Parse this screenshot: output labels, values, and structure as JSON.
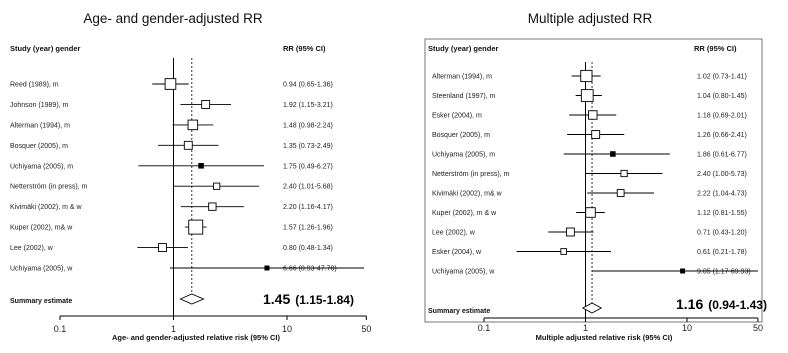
{
  "chart_data": [
    {
      "type": "forest",
      "title": "Age- and gender-adjusted RR",
      "column_headers": {
        "study": "Study (year) gender",
        "estimate": "RR (95% CI)"
      },
      "xlabel": "Age- and gender-adjusted relative risk (95% CI)",
      "x_scale": "log",
      "xlim": [
        0.1,
        50
      ],
      "x_ticks": [
        0.1,
        1,
        10,
        50
      ],
      "x_tick_labels": [
        "0.1",
        "1",
        "10",
        "50"
      ],
      "studies": [
        {
          "label": "Reed (1989), m",
          "rr": 0.94,
          "lo": 0.65,
          "hi": 1.36,
          "ci_text": "0.94 (0.65-1.36)",
          "weight": 0.7
        },
        {
          "label": "Johnson (1989), m",
          "rr": 1.92,
          "lo": 1.15,
          "hi": 3.21,
          "ci_text": "1.92 (1.15-3.21)",
          "weight": 0.45
        },
        {
          "label": "Alterman (1994), m",
          "rr": 1.48,
          "lo": 0.98,
          "hi": 2.24,
          "ci_text": "1.48 (0.98-2.24)",
          "weight": 0.6
        },
        {
          "label": "Bosquer (2005), m",
          "rr": 1.35,
          "lo": 0.73,
          "hi": 2.49,
          "ci_text": "1.35 (0.73-2.49)",
          "weight": 0.45
        },
        {
          "label": "Uchiyama (2005), m",
          "rr": 1.75,
          "lo": 0.49,
          "hi": 6.27,
          "ci_text": "1.75 (0.49-6.27)",
          "weight": 0.15
        },
        {
          "label": "Netterström (in press), m",
          "rr": 2.4,
          "lo": 1.01,
          "hi": 5.68,
          "ci_text": "2.40 (1.01-5.68)",
          "weight": 0.3
        },
        {
          "label": "Kivimäki (2002), m & w",
          "rr": 2.2,
          "lo": 1.16,
          "hi": 4.17,
          "ci_text": "2.20 (1.16-4.17)",
          "weight": 0.4
        },
        {
          "label": "Kuper (2002), m& w",
          "rr": 1.57,
          "lo": 1.26,
          "hi": 1.96,
          "ci_text": "1.57 (1.26-1.96)",
          "weight": 1.0
        },
        {
          "label": "Lee (2002), w",
          "rr": 0.8,
          "lo": 0.48,
          "hi": 1.34,
          "ci_text": "0.80 (0.48-1.34)",
          "weight": 0.45
        },
        {
          "label": "Uchiyama (2005), w",
          "rr": 6.66,
          "lo": 0.93,
          "hi": 47.7,
          "ci_text": "6.66 (0.93-47.70)",
          "weight": 0.1
        }
      ],
      "summary": {
        "label": "Summary estimate",
        "rr": 1.45,
        "lo": 1.15,
        "hi": 1.84,
        "rr_text": "1.45",
        "ci_text": "(1.15-1.84)"
      }
    },
    {
      "type": "forest",
      "title": "Multiple adjusted RR",
      "column_headers": {
        "study": "Study (year) gender",
        "estimate": "RR (95% CI)"
      },
      "xlabel": "Multiple adjusted relative risk (95% CI)",
      "x_scale": "log",
      "xlim": [
        0.1,
        50
      ],
      "x_ticks": [
        0.1,
        1,
        10,
        50
      ],
      "x_tick_labels": [
        "0.1",
        "1",
        "10",
        "50"
      ],
      "studies": [
        {
          "label": "Alterman (1994), m",
          "rr": 1.02,
          "lo": 0.73,
          "hi": 1.41,
          "ci_text": "1.02 (0.73-1.41)",
          "weight": 0.75
        },
        {
          "label": "Steenland (1997), m",
          "rr": 1.04,
          "lo": 0.8,
          "hi": 1.45,
          "ci_text": "1.04 (0.80-1.45)",
          "weight": 0.8
        },
        {
          "label": "Esker (2004), m",
          "rr": 1.18,
          "lo": 0.69,
          "hi": 2.01,
          "ci_text": "1.18 (0.69-2.01)",
          "weight": 0.5
        },
        {
          "label": "Bosquer (2005), m",
          "rr": 1.26,
          "lo": 0.66,
          "hi": 2.41,
          "ci_text": "1.26 (0.66-2.41)",
          "weight": 0.45
        },
        {
          "label": "Uchiyama (2005), m",
          "rr": 1.86,
          "lo": 0.61,
          "hi": 6.77,
          "ci_text": "1.86 (0.61-6.77)",
          "weight": 0.15
        },
        {
          "label": "Netterström (in press), m",
          "rr": 2.4,
          "lo": 1.0,
          "hi": 5.73,
          "ci_text": "2.40 (1.00-5.73)",
          "weight": 0.3
        },
        {
          "label": "Kivimäki (2002), m& w",
          "rr": 2.22,
          "lo": 1.04,
          "hi": 4.73,
          "ci_text": "2.22 (1.04-4.73)",
          "weight": 0.35
        },
        {
          "label": "Kuper (2002), m & w",
          "rr": 1.12,
          "lo": 0.81,
          "hi": 1.55,
          "ci_text": "1.12 (0.81-1.55)",
          "weight": 0.6
        },
        {
          "label": "Lee (2002), w",
          "rr": 0.71,
          "lo": 0.43,
          "hi": 1.2,
          "ci_text": "0.71 (0.43-1.20)",
          "weight": 0.45
        },
        {
          "label": "Esker (2004), w",
          "rr": 0.61,
          "lo": 0.21,
          "hi": 1.78,
          "ci_text": "0.61 (0.21-1.78)",
          "weight": 0.25
        },
        {
          "label": "Uchiyama (2005), w",
          "rr": 9.05,
          "lo": 1.17,
          "hi": 69.93,
          "ci_text": "9.05 (1.17-69.93)",
          "weight": 0.1
        }
      ],
      "summary": {
        "label": "Summary estimate",
        "rr": 1.16,
        "lo": 0.94,
        "hi": 1.43,
        "rr_text": "1.16",
        "ci_text": "(0.94-1.43)"
      }
    }
  ]
}
